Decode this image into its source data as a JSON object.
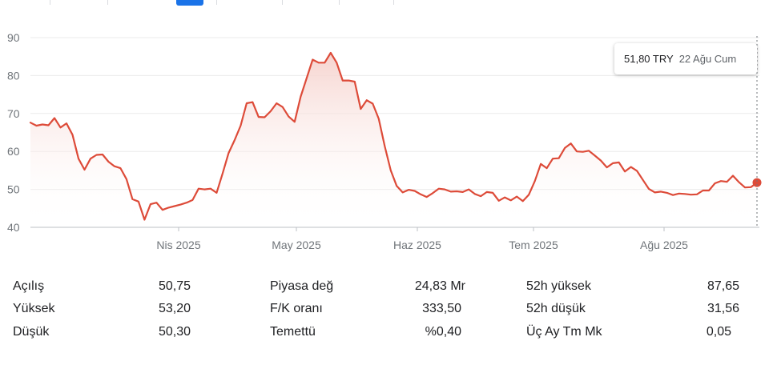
{
  "colors": {
    "line": "#dd4b39",
    "fill_top": "#f6d4cf",
    "grid": "#ebebeb",
    "axis_text": "#70757a",
    "tab_active": "#1a73e8"
  },
  "tooltip": {
    "value": "51,80 TRY",
    "date": "22 Ağu Cum"
  },
  "chart_data": {
    "type": "line",
    "ylim": [
      40,
      90
    ],
    "yticks": [
      40,
      50,
      60,
      70,
      80,
      90
    ],
    "xtick_labels": [
      "Nis 2025",
      "May 2025",
      "Haz 2025",
      "Tem 2025",
      "Ağu 2025"
    ],
    "grid": true,
    "last_point_marker": true,
    "series": [
      {
        "values": [
          67.6,
          66.8,
          67.1,
          66.9,
          68.8,
          66.3,
          67.4,
          64.4,
          58.1,
          55.2,
          58.1,
          59.1,
          59.2,
          57.3,
          56.1,
          55.6,
          52.7,
          47.4,
          46.8,
          42.0,
          46.1,
          46.5,
          44.6,
          45.2,
          45.6,
          46.0,
          46.5,
          47.2,
          50.2,
          50.0,
          50.2,
          49.1,
          54.2,
          59.6,
          63.0,
          66.8,
          72.7,
          73.0,
          69.1,
          69.0,
          70.6,
          72.7,
          71.7,
          69.2,
          67.8,
          74.4,
          79.3,
          84.2,
          83.4,
          83.4,
          86.0,
          83.4,
          78.7,
          78.7,
          78.4,
          71.2,
          73.5,
          72.6,
          68.6,
          61.4,
          55.0,
          50.9,
          49.2,
          49.9,
          49.6,
          48.7,
          48.0,
          49.0,
          50.2,
          50.0,
          49.4,
          49.5,
          49.3,
          50.0,
          48.8,
          48.2,
          49.3,
          49.1,
          47.0,
          47.9,
          47.1,
          48.1,
          46.9,
          48.6,
          52.2,
          56.7,
          55.6,
          58.1,
          58.2,
          60.9,
          62.1,
          60.0,
          59.9,
          60.2,
          58.9,
          57.6,
          55.8,
          56.9,
          57.1,
          54.7,
          55.9,
          54.9,
          52.5,
          50.1,
          49.2,
          49.4,
          49.1,
          48.5,
          48.9,
          48.8,
          48.6,
          48.7,
          49.7,
          49.7,
          51.6,
          52.2,
          52.0,
          53.6,
          51.9,
          50.5,
          50.6,
          51.8
        ]
      }
    ]
  },
  "stats": [
    [
      {
        "label": "Açılış",
        "value": "50,75"
      },
      {
        "label": "Yüksek",
        "value": "53,20"
      },
      {
        "label": "Düşük",
        "value": "50,30"
      }
    ],
    [
      {
        "label": "Piyasa değ",
        "value": "24,83 Mr"
      },
      {
        "label": "F/K oranı",
        "value": "333,50"
      },
      {
        "label": "Temettü",
        "value": "%0,40"
      }
    ],
    [
      {
        "label": "52h yüksek",
        "value": "87,65"
      },
      {
        "label": "52h düşük",
        "value": "31,56"
      },
      {
        "label": "Üç Ay Tm Mk",
        "value": "0,05"
      }
    ]
  ]
}
